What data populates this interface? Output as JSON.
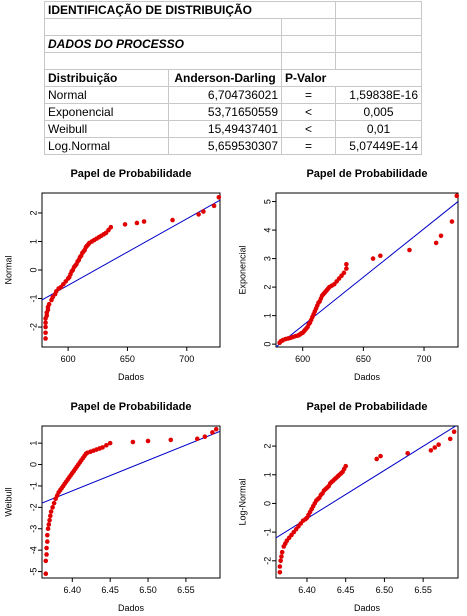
{
  "sheet": {
    "title": "IDENTIFICAÇÃO DE DISTRIBUIÇÃO",
    "subtitle": "DADOS DO PROCESSO",
    "headers": [
      "Distribuição",
      "Anderson-Darling",
      "P-Valor"
    ],
    "rows": [
      {
        "dist": "Normal",
        "ad": "6,704736021",
        "op": "=",
        "p": "1,59838E-16"
      },
      {
        "dist": "Exponencial",
        "ad": "53,71650559",
        "op": "<",
        "p": "0,005"
      },
      {
        "dist": "Weibull",
        "ad": "15,49437401",
        "op": "<",
        "p": "0,01"
      },
      {
        "dist": "Log.Normal",
        "ad": "5,659530307",
        "op": "=",
        "p": "5,07449E-14"
      }
    ]
  },
  "colors": {
    "points": "#e00000",
    "line": "#0000c8"
  },
  "chart_data": [
    {
      "type": "scatter",
      "title": "Papel de Probabilidade",
      "xlabel": "Dados",
      "ylabel": "Normal",
      "xlim": [
        578,
        728
      ],
      "ylim": [
        -2.7,
        2.7
      ],
      "xticks": [
        600,
        650,
        700
      ],
      "yticks": [
        -2,
        -1,
        0,
        1,
        2
      ],
      "xtick_labels": [
        "600",
        "650",
        "700"
      ],
      "ytick_labels": [
        "-2",
        "-1",
        "0",
        "1",
        "2"
      ],
      "line": {
        "x": [
          578,
          728
        ],
        "y": [
          -1.05,
          2.45
        ]
      },
      "x": [
        581,
        581,
        581,
        581,
        581,
        582,
        582,
        583,
        583,
        584,
        586,
        587,
        589,
        590,
        592,
        594,
        596,
        598,
        600,
        601,
        602,
        603,
        604,
        605,
        606,
        607,
        608,
        609,
        610,
        611,
        612,
        613,
        614,
        615,
        616,
        617,
        618,
        620,
        622,
        624,
        626,
        628,
        630,
        632,
        634,
        636,
        648,
        658,
        664,
        688,
        710,
        714,
        723,
        727
      ],
      "y": [
        -2.4,
        -2.2,
        -2.0,
        -1.85,
        -1.7,
        -1.6,
        -1.5,
        -1.4,
        -1.3,
        -1.2,
        -1.05,
        -0.95,
        -0.85,
        -0.75,
        -0.65,
        -0.6,
        -0.5,
        -0.4,
        -0.3,
        -0.25,
        -0.15,
        -0.05,
        0.0,
        0.1,
        0.15,
        0.2,
        0.3,
        0.35,
        0.45,
        0.5,
        0.6,
        0.65,
        0.7,
        0.8,
        0.85,
        0.9,
        0.95,
        1.0,
        1.05,
        1.1,
        1.15,
        1.2,
        1.25,
        1.3,
        1.4,
        1.5,
        1.6,
        1.65,
        1.7,
        1.75,
        1.95,
        2.05,
        2.25,
        2.55
      ]
    },
    {
      "type": "scatter",
      "title": "Papel de Probabilidade",
      "xlabel": "Dados",
      "ylabel": "Exponencial",
      "xlim": [
        578,
        728
      ],
      "ylim": [
        -0.1,
        5.3
      ],
      "xticks": [
        600,
        650,
        700
      ],
      "yticks": [
        0,
        1,
        2,
        3,
        4,
        5
      ],
      "xtick_labels": [
        "600",
        "650",
        "700"
      ],
      "ytick_labels": [
        "0",
        "1",
        "2",
        "3",
        "4",
        "5"
      ],
      "line": {
        "x": [
          578,
          728
        ],
        "y": [
          -0.1,
          5.0
        ]
      },
      "x": [
        581,
        582,
        583,
        584,
        586,
        588,
        590,
        592,
        594,
        596,
        597,
        598,
        599,
        600,
        601,
        602,
        603,
        604,
        605,
        606,
        607,
        608,
        609,
        610,
        611,
        612,
        613,
        614,
        615,
        616,
        617,
        618,
        619,
        620,
        621,
        622,
        624,
        626,
        628,
        630,
        632,
        634,
        636,
        636,
        658,
        664,
        688,
        710,
        714,
        723,
        727
      ],
      "y": [
        0.05,
        0.1,
        0.12,
        0.15,
        0.18,
        0.2,
        0.22,
        0.25,
        0.28,
        0.3,
        0.32,
        0.35,
        0.38,
        0.4,
        0.45,
        0.5,
        0.55,
        0.6,
        0.7,
        0.75,
        0.85,
        0.95,
        1.05,
        1.15,
        1.25,
        1.35,
        1.45,
        1.5,
        1.6,
        1.7,
        1.75,
        1.8,
        1.85,
        1.9,
        1.95,
        2.0,
        2.05,
        2.1,
        2.2,
        2.3,
        2.4,
        2.5,
        2.65,
        2.8,
        3.0,
        3.1,
        3.3,
        3.55,
        3.8,
        4.3,
        5.2
      ]
    },
    {
      "type": "scatter",
      "title": "Papel de Probabilidade",
      "xlabel": "Dados",
      "ylabel": "Weibull",
      "xlim": [
        6.36,
        6.595
      ],
      "ylim": [
        -5.3,
        1.8
      ],
      "xticks": [
        6.4,
        6.45,
        6.5,
        6.55
      ],
      "yticks": [
        -5,
        -4,
        -3,
        -2,
        -1,
        0,
        1
      ],
      "xtick_labels": [
        "6.40",
        "6.45",
        "6.50",
        "6.55"
      ],
      "ytick_labels": [
        "-5",
        "-4",
        "-3",
        "-2",
        "-1",
        "0",
        "1"
      ],
      "line": {
        "x": [
          6.36,
          6.595
        ],
        "y": [
          -1.8,
          1.55
        ]
      },
      "x": [
        6.365,
        6.365,
        6.366,
        6.366,
        6.367,
        6.367,
        6.368,
        6.369,
        6.37,
        6.371,
        6.372,
        6.374,
        6.376,
        6.378,
        6.38,
        6.382,
        6.384,
        6.386,
        6.388,
        6.39,
        6.392,
        6.394,
        6.396,
        6.398,
        6.4,
        6.402,
        6.404,
        6.406,
        6.408,
        6.41,
        6.412,
        6.414,
        6.416,
        6.418,
        6.42,
        6.424,
        6.428,
        6.432,
        6.436,
        6.44,
        6.445,
        6.45,
        6.48,
        6.5,
        6.53,
        6.565,
        6.575,
        6.585,
        6.59
      ],
      "y": [
        -5.1,
        -4.5,
        -4.2,
        -3.9,
        -3.6,
        -3.3,
        -3.0,
        -2.8,
        -2.6,
        -2.4,
        -2.2,
        -2.0,
        -1.8,
        -1.6,
        -1.45,
        -1.3,
        -1.2,
        -1.1,
        -1.0,
        -0.9,
        -0.8,
        -0.7,
        -0.6,
        -0.5,
        -0.4,
        -0.3,
        -0.2,
        -0.1,
        0.0,
        0.1,
        0.2,
        0.3,
        0.4,
        0.5,
        0.55,
        0.6,
        0.65,
        0.7,
        0.75,
        0.8,
        0.9,
        1.0,
        1.05,
        1.1,
        1.15,
        1.2,
        1.3,
        1.5,
        1.65
      ]
    },
    {
      "type": "scatter",
      "title": "Papel de Probabilidade",
      "xlabel": "Dados",
      "ylabel": "Log-Normal",
      "xlim": [
        6.36,
        6.595
      ],
      "ylim": [
        -2.6,
        2.7
      ],
      "xticks": [
        6.4,
        6.45,
        6.5,
        6.55
      ],
      "yticks": [
        -2,
        -1,
        0,
        1,
        2
      ],
      "xtick_labels": [
        "6.40",
        "6.45",
        "6.50",
        "6.55"
      ],
      "ytick_labels": [
        "-2",
        "-1",
        "0",
        "1",
        "2"
      ],
      "line": {
        "x": [
          6.36,
          6.595
        ],
        "y": [
          -1.2,
          2.75
        ]
      },
      "x": [
        6.365,
        6.365,
        6.366,
        6.367,
        6.368,
        6.37,
        6.372,
        6.374,
        6.377,
        6.38,
        6.383,
        6.386,
        6.389,
        6.392,
        6.395,
        6.398,
        6.4,
        6.402,
        6.404,
        6.406,
        6.408,
        6.41,
        6.412,
        6.414,
        6.416,
        6.418,
        6.42,
        6.422,
        6.424,
        6.426,
        6.428,
        6.43,
        6.432,
        6.434,
        6.436,
        6.438,
        6.44,
        6.442,
        6.444,
        6.446,
        6.448,
        6.45,
        6.49,
        6.495,
        6.53,
        6.56,
        6.565,
        6.57,
        6.585,
        6.59
      ],
      "y": [
        -2.4,
        -2.2,
        -2.0,
        -1.85,
        -1.7,
        -1.5,
        -1.4,
        -1.3,
        -1.2,
        -1.1,
        -1.0,
        -0.9,
        -0.8,
        -0.7,
        -0.6,
        -0.55,
        -0.5,
        -0.4,
        -0.3,
        -0.2,
        -0.1,
        0.0,
        0.1,
        0.15,
        0.2,
        0.3,
        0.35,
        0.45,
        0.5,
        0.55,
        0.6,
        0.7,
        0.75,
        0.8,
        0.85,
        0.9,
        0.95,
        1.0,
        1.05,
        1.1,
        1.2,
        1.3,
        1.55,
        1.65,
        1.75,
        1.85,
        1.95,
        2.05,
        2.25,
        2.5
      ]
    }
  ]
}
